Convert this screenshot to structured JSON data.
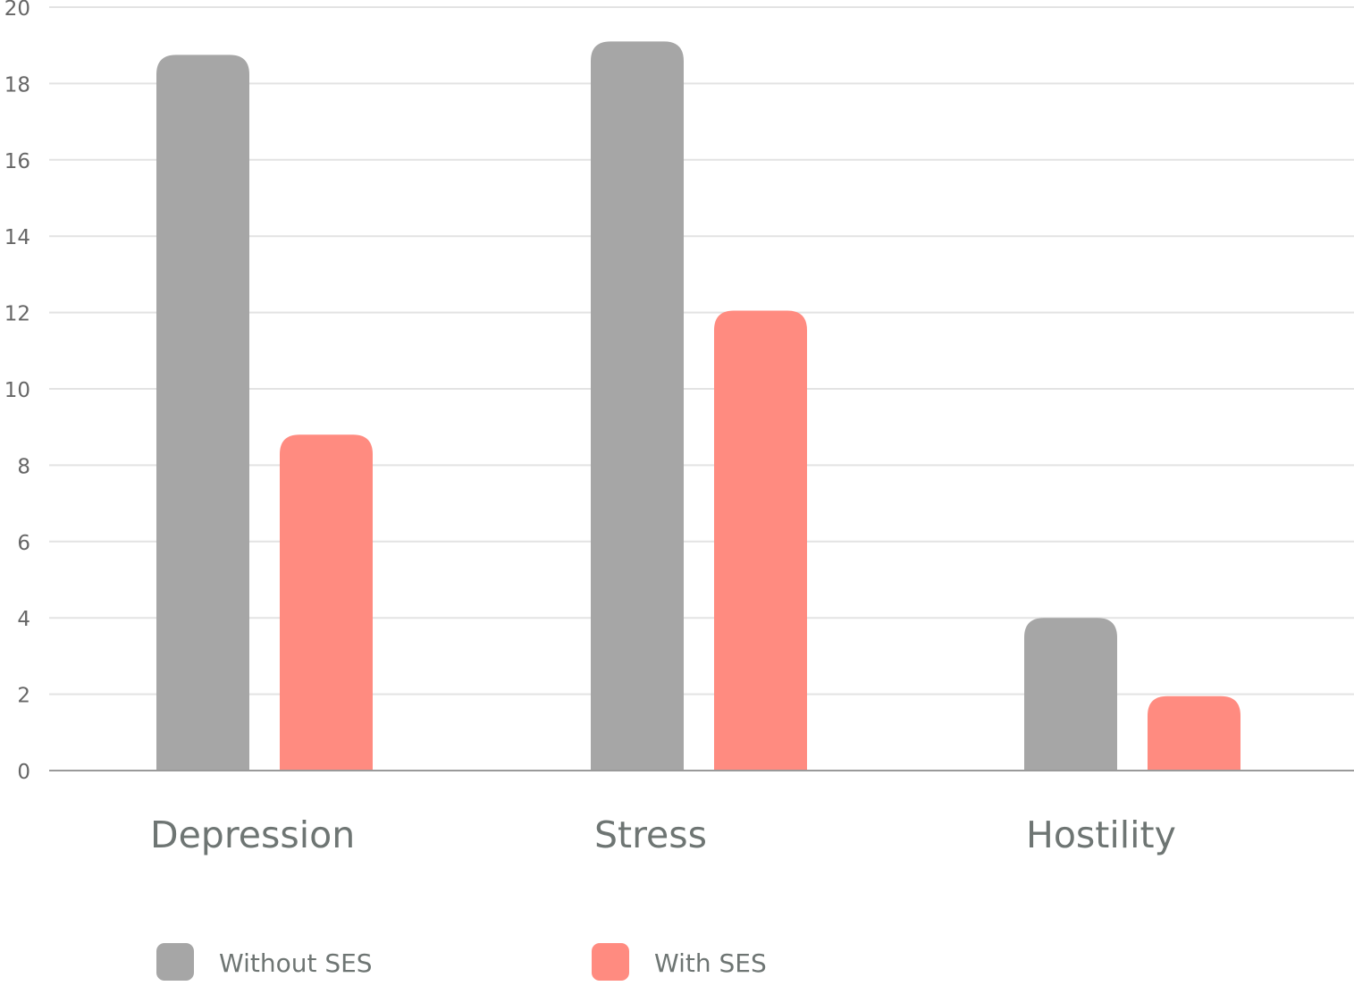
{
  "chart_data": {
    "type": "bar",
    "categories": [
      "Depression",
      "Stress",
      "Hostility"
    ],
    "series": [
      {
        "name": "Without SES",
        "values": [
          18.75,
          19.1,
          4.0
        ],
        "color": "#a6a6a6"
      },
      {
        "name": "With SES",
        "values": [
          8.8,
          12.05,
          1.95
        ],
        "color": "#ff8b80"
      }
    ],
    "title": "",
    "xlabel": "",
    "ylabel": "",
    "ylim": [
      0,
      20
    ],
    "yticks": [
      0,
      2,
      4,
      6,
      8,
      10,
      12,
      14,
      16,
      18,
      20
    ],
    "grid": true,
    "legend": "bottom-left"
  },
  "colors": {
    "grid": "#e3e3e3",
    "axis": "#9a9a9a",
    "tick_text": "#666666",
    "category_text": "#6e7573",
    "legend_text": "#6e7573"
  }
}
